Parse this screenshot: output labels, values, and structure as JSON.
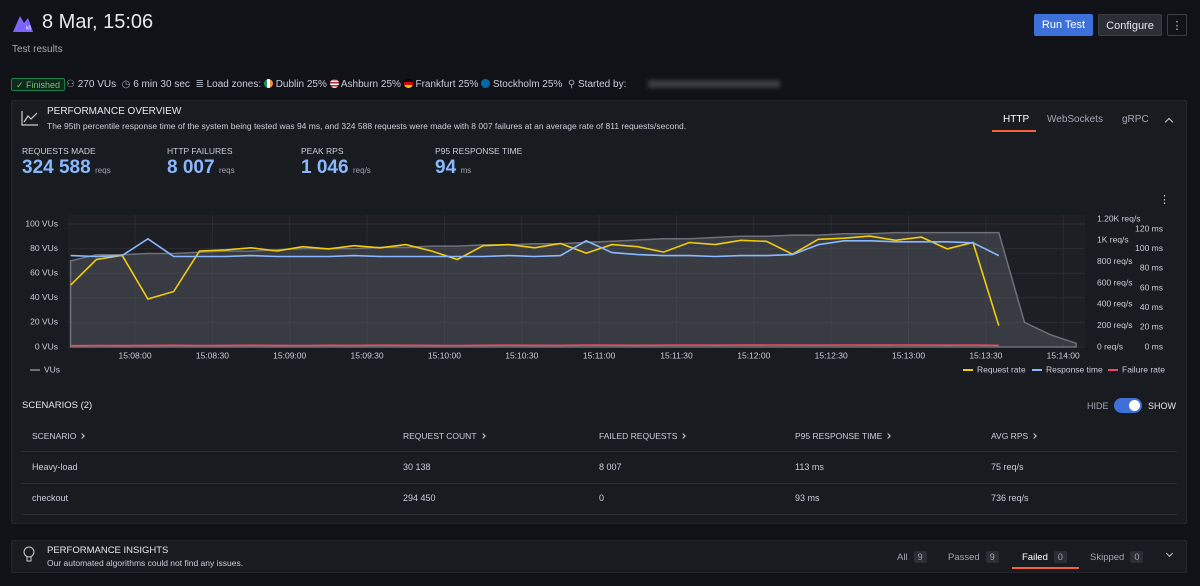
{
  "header": {
    "title": "8 Mar, 15:06",
    "subtitle": "Test results",
    "buttons": [
      "Run Test",
      "Configure"
    ]
  },
  "status": {
    "state": "Finished",
    "vus": "270 VUs",
    "duration": "6 min 30 sec",
    "load_zones_label": "Load zones:",
    "zones": [
      "Dublin 25%",
      "Ashburn 25%",
      "Frankfurt 25%",
      "Stockholm 25%"
    ],
    "started_by_label": "Started by:"
  },
  "overview": {
    "title": "PERFORMANCE OVERVIEW",
    "description": "The 95th percentile response time of the system being tested was 94 ms, and 324 588 requests were made with 8 007 failures at an average rate of 811 requests/second.",
    "tabs": [
      "HTTP",
      "WebSockets",
      "gRPC"
    ],
    "stats": [
      {
        "label": "REQUESTS MADE",
        "value": "324 588",
        "unit": "reqs"
      },
      {
        "label": "HTTP FAILURES",
        "value": "8 007",
        "unit": "reqs"
      },
      {
        "label": "PEAK RPS",
        "value": "1 046",
        "unit": "req/s"
      },
      {
        "label": "P95 RESPONSE TIME",
        "value": "94",
        "unit": "ms"
      }
    ],
    "chart": {
      "type": "line",
      "grid": true,
      "xlim": [
        "15:07:34",
        "15:14:10"
      ],
      "xticks": [
        "15:08:00",
        "15:08:30",
        "15:09:00",
        "15:09:30",
        "15:10:00",
        "15:10:30",
        "15:11:00",
        "15:11:30",
        "15:12:00",
        "15:12:30",
        "15:13:00",
        "15:13:30",
        "15:14:00"
      ],
      "ylim": [
        0,
        100
      ],
      "yticks": [
        {
          "value": 0,
          "label": "0 VUs"
        },
        {
          "value": 20,
          "label": "20 VUs"
        },
        {
          "value": 40,
          "label": "40 VUs"
        },
        {
          "value": 60,
          "label": "60 VUs"
        },
        {
          "value": 80,
          "label": "80 VUs"
        },
        {
          "value": 100,
          "label": "100 VUs"
        }
      ],
      "y2lim": [
        0,
        1200
      ],
      "y2ticks": [
        {
          "value": 0,
          "label": "0 req/s"
        },
        {
          "value": 200,
          "label": "200 req/s"
        },
        {
          "value": 400,
          "label": "400 req/s"
        },
        {
          "value": 600,
          "label": "600 req/s"
        },
        {
          "value": 800,
          "label": "800 req/s"
        },
        {
          "value": 1000,
          "label": "1K req/s"
        },
        {
          "value": 1200,
          "label": "1.20K req/s"
        }
      ],
      "y3lim": [
        0,
        120
      ],
      "y3ticks": [
        {
          "value": 0,
          "label": "0 ms"
        },
        {
          "value": 20,
          "label": "20 ms"
        },
        {
          "value": 40,
          "label": "40 ms"
        },
        {
          "value": 60,
          "label": "60 ms"
        },
        {
          "value": 80,
          "label": "80 ms"
        },
        {
          "value": 100,
          "label": "100 ms"
        },
        {
          "value": 120,
          "label": "120 ms"
        }
      ],
      "series": [
        {
          "name": "VUs",
          "color": "#6e7079",
          "axis": "y",
          "x": [
            "15:07:35",
            "15:07:45",
            "15:07:55",
            "15:08:05",
            "15:08:15",
            "15:08:25",
            "15:08:35",
            "15:08:45",
            "15:08:55",
            "15:09:05",
            "15:09:15",
            "15:09:25",
            "15:09:35",
            "15:09:45",
            "15:09:55",
            "15:10:05",
            "15:10:15",
            "15:10:25",
            "15:10:35",
            "15:10:45",
            "15:10:55",
            "15:11:05",
            "15:11:15",
            "15:11:25",
            "15:11:35",
            "15:11:45",
            "15:11:55",
            "15:12:05",
            "15:12:15",
            "15:12:25",
            "15:12:35",
            "15:12:45",
            "15:12:55",
            "15:13:05",
            "15:13:15",
            "15:13:25",
            "15:13:35",
            "15:13:45",
            "15:13:55",
            "15:14:05"
          ],
          "values": [
            70,
            75,
            75,
            76,
            76,
            77,
            78,
            78,
            79,
            80,
            80,
            80,
            81,
            81,
            82,
            82,
            83,
            83,
            84,
            84,
            85,
            86,
            87,
            88,
            88,
            89,
            90,
            90,
            91,
            91,
            92,
            92,
            93,
            93,
            93,
            93,
            93,
            20,
            10,
            3
          ]
        },
        {
          "name": "Request rate",
          "color": "#f2cc0c",
          "axis": "y2",
          "x": [
            "15:07:35",
            "15:07:45",
            "15:07:55",
            "15:08:05",
            "15:08:15",
            "15:08:25",
            "15:08:35",
            "15:08:45",
            "15:08:55",
            "15:09:05",
            "15:09:15",
            "15:09:25",
            "15:09:35",
            "15:09:45",
            "15:09:55",
            "15:10:05",
            "15:10:15",
            "15:10:25",
            "15:10:35",
            "15:10:45",
            "15:10:55",
            "15:11:05",
            "15:11:15",
            "15:11:25",
            "15:11:35",
            "15:11:45",
            "15:11:55",
            "15:12:05",
            "15:12:15",
            "15:12:25",
            "15:12:35",
            "15:12:45",
            "15:12:55",
            "15:13:05",
            "15:13:15",
            "15:13:25",
            "15:13:35"
          ],
          "values": [
            580,
            820,
            860,
            450,
            520,
            900,
            910,
            930,
            900,
            940,
            920,
            950,
            930,
            960,
            900,
            820,
            950,
            960,
            930,
            970,
            880,
            960,
            940,
            890,
            980,
            960,
            1000,
            990,
            870,
            1010,
            1020,
            1040,
            1000,
            1030,
            920,
            980,
            200
          ]
        },
        {
          "name": "Response time",
          "color": "#8ab8ff",
          "axis": "y3",
          "x": [
            "15:07:35",
            "15:07:45",
            "15:07:55",
            "15:08:05",
            "15:08:15",
            "15:08:25",
            "15:08:35",
            "15:08:45",
            "15:08:55",
            "15:09:05",
            "15:09:15",
            "15:09:25",
            "15:09:35",
            "15:09:45",
            "15:09:55",
            "15:10:05",
            "15:10:15",
            "15:10:25",
            "15:10:35",
            "15:10:45",
            "15:10:55",
            "15:11:05",
            "15:11:15",
            "15:11:25",
            "15:11:35",
            "15:11:45",
            "15:11:55",
            "15:12:05",
            "15:12:15",
            "15:12:25",
            "15:12:35",
            "15:12:45",
            "15:12:55",
            "15:13:05",
            "15:13:15",
            "15:13:25",
            "15:13:35"
          ],
          "values": [
            93,
            92,
            93,
            110,
            92,
            92,
            92,
            93,
            92,
            92,
            92,
            93,
            92,
            92,
            92,
            92,
            92,
            93,
            92,
            93,
            108,
            96,
            94,
            93,
            93,
            92,
            93,
            93,
            94,
            104,
            108,
            108,
            107,
            107,
            107,
            106,
            93
          ]
        },
        {
          "name": "Failure rate",
          "color": "#f2495c",
          "axis": "y2",
          "x": [
            "15:07:35",
            "15:07:45",
            "15:07:55",
            "15:08:05",
            "15:08:15",
            "15:08:25",
            "15:08:35",
            "15:08:45",
            "15:08:55",
            "15:09:05",
            "15:09:15",
            "15:09:25",
            "15:09:35",
            "15:09:45",
            "15:09:55",
            "15:10:05",
            "15:10:15",
            "15:10:25",
            "15:10:35",
            "15:10:45",
            "15:10:55",
            "15:11:05",
            "15:11:15",
            "15:11:25",
            "15:11:35",
            "15:11:45",
            "15:11:55",
            "15:12:05",
            "15:12:15",
            "15:12:25",
            "15:12:35",
            "15:12:45",
            "15:12:55",
            "15:13:05",
            "15:13:15",
            "15:13:25",
            "15:13:35"
          ],
          "values": [
            12,
            14,
            13,
            15,
            16,
            14,
            15,
            16,
            15,
            14,
            16,
            15,
            17,
            16,
            15,
            14,
            16,
            17,
            16,
            15,
            18,
            17,
            16,
            17,
            18,
            17,
            18,
            19,
            18,
            17,
            19,
            18,
            19,
            18,
            17,
            18,
            15
          ]
        }
      ]
    }
  },
  "scenarios": {
    "title": "SCENARIOS (2)",
    "toggle": [
      "HIDE",
      "SHOW"
    ],
    "columns": [
      "SCENARIO",
      "REQUEST COUNT",
      "FAILED REQUESTS",
      "P95 RESPONSE TIME",
      "AVG RPS"
    ],
    "rows": [
      [
        "Heavy-load",
        "30 138",
        "8 007",
        "113 ms",
        "75 req/s"
      ],
      [
        "checkout",
        "294 450",
        "0",
        "93 ms",
        "736 req/s"
      ]
    ]
  },
  "insights": {
    "title": "PERFORMANCE INSIGHTS",
    "description": "Our automated algorithms could not find any issues.",
    "tabs": [
      {
        "name": "All",
        "count": 9
      },
      {
        "name": "Passed",
        "count": 9
      },
      {
        "name": "Failed",
        "count": 0
      },
      {
        "name": "Skipped",
        "count": 0
      }
    ]
  }
}
